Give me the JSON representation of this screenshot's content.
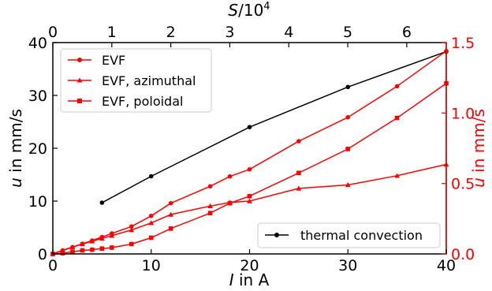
{
  "chart_data": {
    "type": "line",
    "xlabel_var": "I",
    "xlabel_rest": " in A",
    "xlim": [
      0,
      40
    ],
    "xticks": [
      "0",
      "10",
      "20",
      "30",
      "40"
    ],
    "top_xlabel_var": "S",
    "top_xlabel_rest": "/10",
    "top_xlabel_exp": "4",
    "top_xlim": [
      0,
      6.67
    ],
    "top_xticks": [
      "0",
      "1",
      "2",
      "3",
      "4",
      "5",
      "6"
    ],
    "ylabel_left_var": "u",
    "ylabel_left_rest": " in mm/s",
    "ylim_left": [
      0,
      40
    ],
    "yticks_left": [
      "0",
      "10",
      "20",
      "30",
      "40"
    ],
    "ylabel_right_var": "u",
    "ylabel_right_rest": " in mm/s",
    "ylim_right": [
      0,
      1.5
    ],
    "yticks_right": [
      "0.0",
      "0.5",
      "1.0",
      "1.5"
    ],
    "grid": false,
    "colors": {
      "evf": "#ff0000",
      "thermal": "#000000",
      "right_axis": "#ff0000"
    },
    "legend_upper_left": {
      "placement": "upper-left",
      "entries": [
        "EVF",
        "EVF, azimuthal",
        "EVF, poloidal"
      ]
    },
    "legend_lower_right": {
      "placement": "lower-right",
      "entries": [
        "thermal convection"
      ]
    },
    "series": [
      {
        "name": "thermal convection",
        "axis": "left",
        "marker": "circle",
        "color": "#000000",
        "x": [
          5,
          10,
          20,
          30,
          40
        ],
        "y": [
          9.7,
          14.7,
          24.0,
          31.6,
          38.3
        ]
      },
      {
        "name": "EVF",
        "axis": "right",
        "marker": "circle",
        "color": "#ff0000",
        "x": [
          0,
          1,
          2,
          3,
          4,
          5,
          6,
          8,
          10,
          12,
          16,
          18,
          20,
          25,
          30,
          35,
          40
        ],
        "y": [
          0.0,
          0.025,
          0.048,
          0.072,
          0.095,
          0.12,
          0.145,
          0.195,
          0.27,
          0.36,
          0.48,
          0.55,
          0.6,
          0.8,
          0.97,
          1.19,
          1.44
        ]
      },
      {
        "name": "EVF, azimuthal",
        "axis": "right",
        "marker": "triangle",
        "color": "#ff0000",
        "x": [
          0,
          1,
          2,
          3,
          4,
          5,
          6,
          8,
          10,
          12,
          16,
          18,
          20,
          25,
          30,
          35,
          40
        ],
        "y": [
          0.0,
          0.025,
          0.048,
          0.07,
          0.09,
          0.11,
          0.13,
          0.17,
          0.22,
          0.28,
          0.34,
          0.365,
          0.375,
          0.465,
          0.49,
          0.555,
          0.635
        ]
      },
      {
        "name": "EVF, poloidal",
        "axis": "right",
        "marker": "square",
        "color": "#ff0000",
        "x": [
          0,
          1,
          2,
          3,
          4,
          5,
          6,
          8,
          10,
          12,
          16,
          18,
          20,
          25,
          30,
          35,
          40
        ],
        "y": [
          0.0,
          0.005,
          0.015,
          0.025,
          0.03,
          0.038,
          0.045,
          0.07,
          0.115,
          0.18,
          0.29,
          0.36,
          0.41,
          0.575,
          0.745,
          0.965,
          1.21
        ]
      }
    ]
  }
}
